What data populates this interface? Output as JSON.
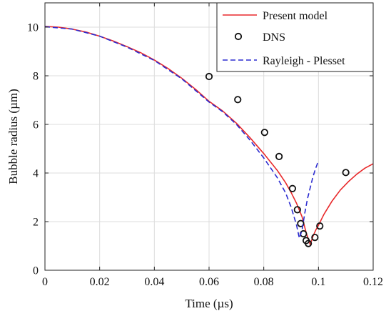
{
  "chart_data": {
    "type": "line",
    "title": "",
    "xlabel": "Time (µs)",
    "ylabel": "Bubble radius (µm)",
    "xlim": [
      0,
      0.12
    ],
    "ylim": [
      0,
      11
    ],
    "x_ticks": [
      0,
      0.02,
      0.04,
      0.06,
      0.08,
      0.1,
      0.12
    ],
    "y_ticks": [
      0,
      2,
      4,
      6,
      8,
      10
    ],
    "x_tick_labels": [
      "0",
      "0.02",
      "0.04",
      "0.06",
      "0.08",
      "0.1",
      "0.12"
    ],
    "y_tick_labels": [
      "0",
      "2",
      "4",
      "6",
      "8",
      "10"
    ],
    "grid": true,
    "legend_position": "top-right",
    "series": [
      {
        "name": "Present model",
        "style": "solid-line",
        "color": "#e8292b",
        "x": [
          0,
          0.005,
          0.01,
          0.015,
          0.02,
          0.025,
          0.03,
          0.035,
          0.04,
          0.045,
          0.05,
          0.055,
          0.06,
          0.065,
          0.07,
          0.075,
          0.08,
          0.085,
          0.088,
          0.09,
          0.092,
          0.094,
          0.0955,
          0.097,
          0.098,
          0.099,
          0.1,
          0.102,
          0.105,
          0.108,
          0.111,
          0.114,
          0.117,
          0.12
        ],
        "y": [
          10.03,
          10.0,
          9.92,
          9.8,
          9.63,
          9.43,
          9.2,
          8.95,
          8.65,
          8.3,
          7.9,
          7.45,
          6.95,
          6.55,
          6.05,
          5.45,
          4.8,
          4.1,
          3.6,
          3.2,
          2.75,
          2.2,
          1.55,
          1.05,
          1.4,
          1.65,
          1.85,
          2.3,
          2.85,
          3.3,
          3.65,
          3.95,
          4.2,
          4.38
        ]
      },
      {
        "name": "DNS",
        "style": "circle-markers",
        "color": "#111111",
        "x": [
          0.06,
          0.0705,
          0.0803,
          0.0856,
          0.0905,
          0.0923,
          0.0935,
          0.0945,
          0.0955,
          0.0963,
          0.0987,
          0.1005,
          0.11
        ],
        "y": [
          7.97,
          7.02,
          5.67,
          4.68,
          3.36,
          2.49,
          1.92,
          1.5,
          1.22,
          1.1,
          1.35,
          1.82,
          4.02
        ]
      },
      {
        "name": "Rayleigh - Plesset",
        "style": "dashed-line",
        "color": "#2b2bd0",
        "x": [
          0,
          0.01,
          0.02,
          0.03,
          0.04,
          0.05,
          0.06,
          0.065,
          0.07,
          0.075,
          0.08,
          0.085,
          0.088,
          0.09,
          0.092,
          0.093,
          0.094,
          0.095,
          0.096,
          0.097,
          0.098,
          0.099,
          0.1
        ],
        "y": [
          10.02,
          9.92,
          9.63,
          9.18,
          8.63,
          7.88,
          6.92,
          6.52,
          6.0,
          5.35,
          4.62,
          3.8,
          3.18,
          2.6,
          1.85,
          1.32,
          1.65,
          2.35,
          2.95,
          3.4,
          3.85,
          4.2,
          4.5
        ]
      }
    ]
  }
}
